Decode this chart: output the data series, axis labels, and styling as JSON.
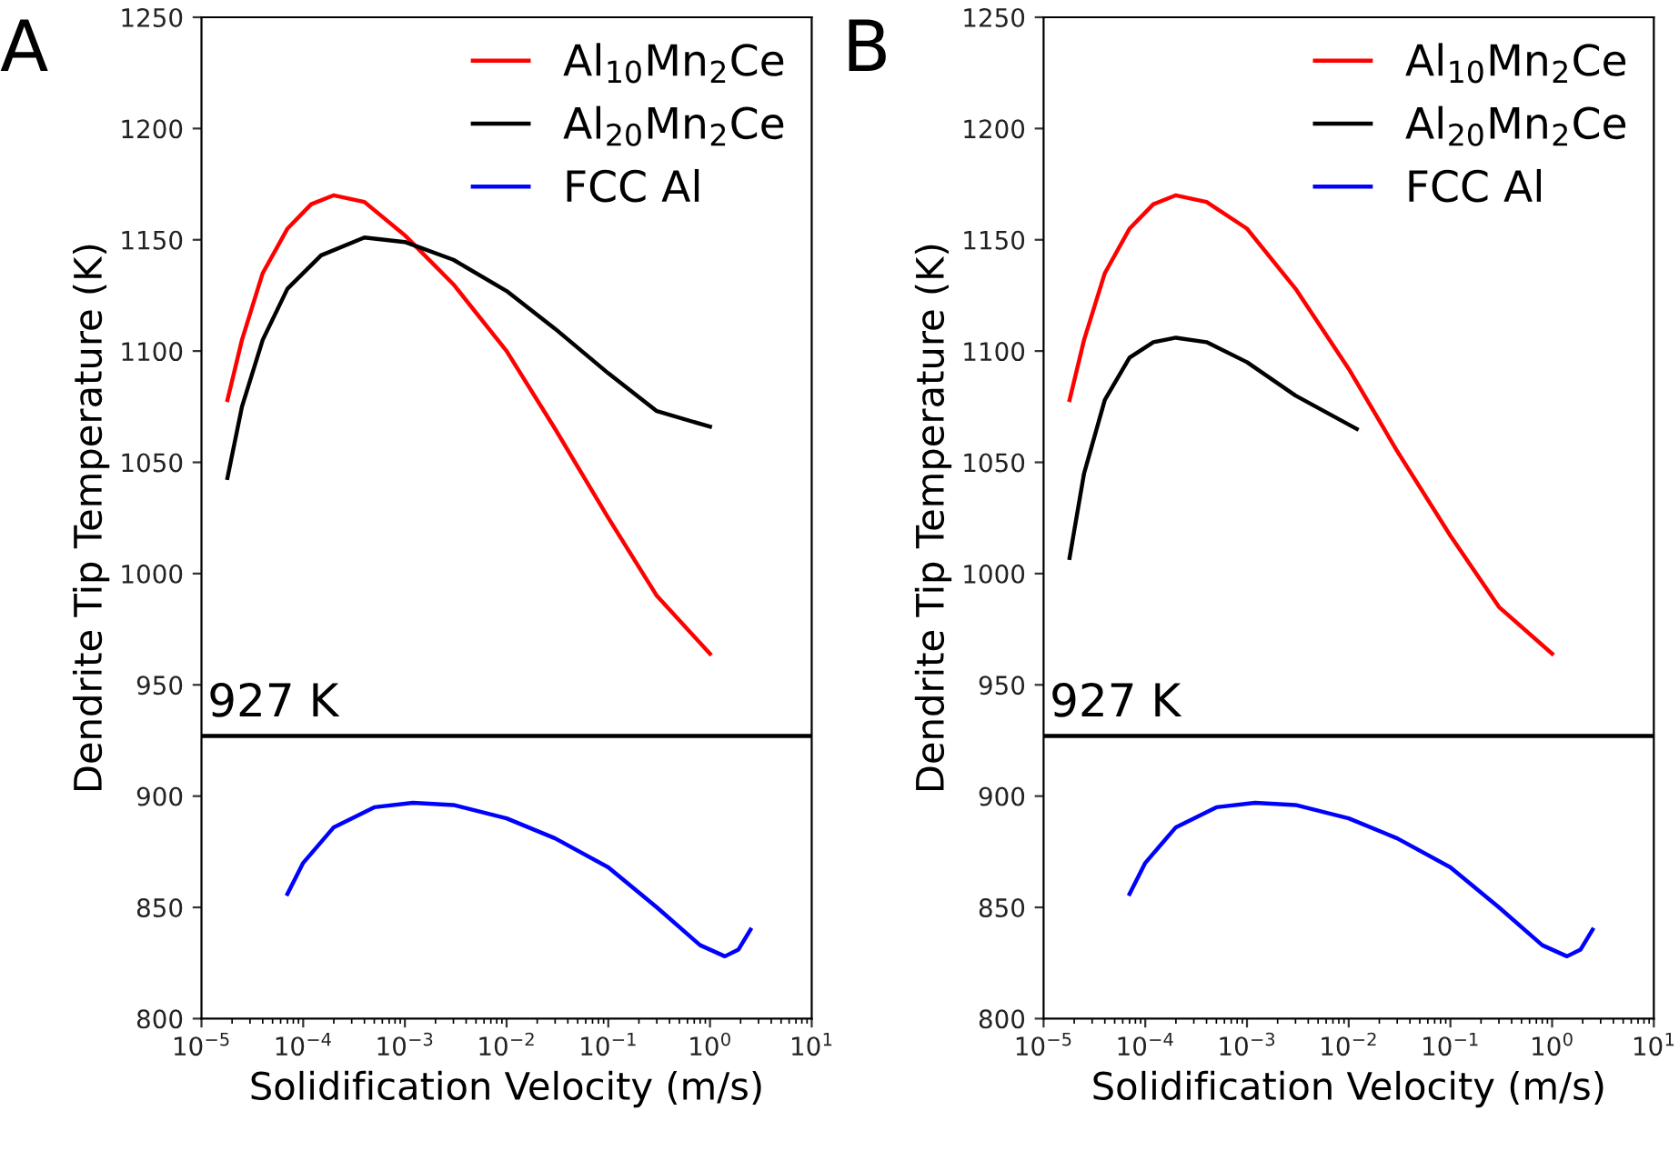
{
  "chart_data": [
    {
      "type": "line",
      "title": "A",
      "xlabel": "Solidification Velocity (m/s)",
      "ylabel": "Dendrite Tip Temperature (K)",
      "log": "x",
      "legend": "top right",
      "grid": false,
      "xlim": [
        1e-05,
        10
      ],
      "xticks": [
        {
          "value": 1e-05,
          "label": "10$^{−5}$"
        },
        {
          "value": 0.0001,
          "label": "10$^{−4}$"
        },
        {
          "value": 0.001,
          "label": "10$^{−3}$"
        },
        {
          "value": 0.01,
          "label": "10$^{−2}$"
        },
        {
          "value": 0.1,
          "label": "10$^{−1}$"
        },
        {
          "value": 1,
          "label": "10$^{0}$"
        },
        {
          "value": 10,
          "label": "10$^{1}$"
        }
      ],
      "ylim": [
        800,
        1250
      ],
      "yticks": [
        800,
        850,
        900,
        950,
        1000,
        1050,
        1100,
        1150,
        1200,
        1250
      ],
      "ref_lines": [
        {
          "axis": "y",
          "value": 927,
          "label": "927 K",
          "color": "#000000"
        }
      ],
      "series": [
        {
          "name": "Al$_{10}$Mn$_{2}$Ce",
          "color": "#ff0000",
          "x": [
            1.8e-05,
            2.5e-05,
            4e-05,
            7e-05,
            0.00012,
            0.0002,
            0.0004,
            0.001,
            0.003,
            0.01,
            0.03,
            0.1,
            0.3,
            1
          ],
          "values": [
            1078,
            1105,
            1135,
            1155,
            1166,
            1170,
            1167,
            1152,
            1130,
            1100,
            1065,
            1025,
            990,
            964
          ]
        },
        {
          "name": "Al$_{20}$Mn$_{2}$Ce",
          "color": "#000000",
          "x": [
            1.8e-05,
            2.5e-05,
            4e-05,
            7e-05,
            0.00015,
            0.0004,
            0.001,
            0.003,
            0.01,
            0.03,
            0.1,
            0.3,
            1
          ],
          "values": [
            1043,
            1075,
            1105,
            1128,
            1143,
            1151,
            1149,
            1141,
            1127,
            1110,
            1090,
            1073,
            1066
          ]
        },
        {
          "name": "FCC Al",
          "color": "#0000ff",
          "x": [
            7e-05,
            0.0001,
            0.0002,
            0.0005,
            0.0012,
            0.003,
            0.01,
            0.03,
            0.1,
            0.3,
            0.8,
            1.4,
            1.9,
            2.5
          ],
          "values": [
            856,
            870,
            886,
            895,
            897,
            896,
            890,
            881,
            868,
            850,
            833,
            828,
            831,
            840
          ]
        }
      ]
    },
    {
      "type": "line",
      "title": "B",
      "xlabel": "Solidification Velocity (m/s)",
      "ylabel": "Dendrite Tip Temperature (K)",
      "log": "x",
      "legend": "top right",
      "grid": false,
      "xlim": [
        1e-05,
        10
      ],
      "xticks": [
        {
          "value": 1e-05,
          "label": "10$^{−5}$"
        },
        {
          "value": 0.0001,
          "label": "10$^{−4}$"
        },
        {
          "value": 0.001,
          "label": "10$^{−3}$"
        },
        {
          "value": 0.01,
          "label": "10$^{−2}$"
        },
        {
          "value": 0.1,
          "label": "10$^{−1}$"
        },
        {
          "value": 1,
          "label": "10$^{0}$"
        },
        {
          "value": 10,
          "label": "10$^{1}$"
        }
      ],
      "ylim": [
        800,
        1250
      ],
      "yticks": [
        800,
        850,
        900,
        950,
        1000,
        1050,
        1100,
        1150,
        1200,
        1250
      ],
      "ref_lines": [
        {
          "axis": "y",
          "value": 927,
          "label": "927 K",
          "color": "#000000"
        }
      ],
      "series": [
        {
          "name": "Al$_{10}$Mn$_{2}$Ce",
          "color": "#ff0000",
          "x": [
            1.8e-05,
            2.5e-05,
            4e-05,
            7e-05,
            0.00012,
            0.0002,
            0.0004,
            0.001,
            0.003,
            0.01,
            0.03,
            0.1,
            0.3,
            1
          ],
          "values": [
            1078,
            1105,
            1135,
            1155,
            1166,
            1170,
            1167,
            1155,
            1128,
            1092,
            1055,
            1017,
            985,
            964
          ]
        },
        {
          "name": "Al$_{20}$Mn$_{2}$Ce",
          "color": "#000000",
          "x": [
            1.8e-05,
            2.5e-05,
            4e-05,
            7e-05,
            0.00012,
            0.0002,
            0.0004,
            0.001,
            0.003,
            0.012
          ],
          "values": [
            1007,
            1045,
            1078,
            1097,
            1104,
            1106,
            1104,
            1095,
            1080,
            1065
          ]
        },
        {
          "name": "FCC Al",
          "color": "#0000ff",
          "x": [
            7e-05,
            0.0001,
            0.0002,
            0.0005,
            0.0012,
            0.003,
            0.01,
            0.03,
            0.1,
            0.3,
            0.8,
            1.4,
            1.9,
            2.5
          ],
          "values": [
            856,
            870,
            886,
            895,
            897,
            896,
            890,
            881,
            868,
            850,
            833,
            828,
            831,
            840
          ]
        }
      ]
    }
  ]
}
